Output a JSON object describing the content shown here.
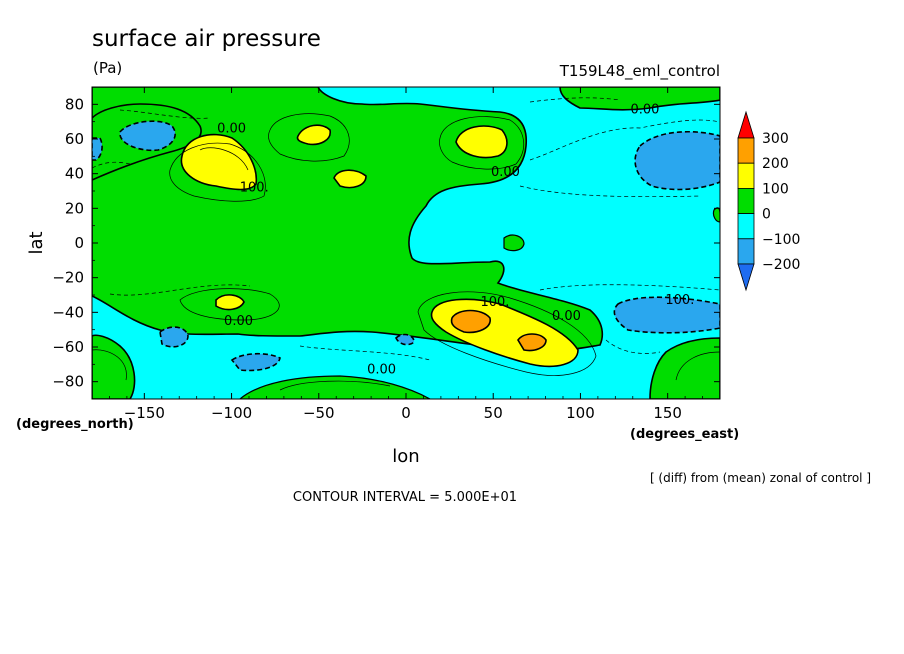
{
  "chart_data": {
    "type": "contour",
    "title": "surface air pressure",
    "units": "(Pa)",
    "run_label": "T159L48_eml_control",
    "xlabel": "lon",
    "ylabel": "lat",
    "x_units": "(degrees_east)",
    "y_units": "(degrees_north)",
    "xlim": [
      -180,
      180
    ],
    "ylim": [
      -90,
      90
    ],
    "x_ticks": [
      -150,
      -100,
      -50,
      0,
      50,
      100,
      150
    ],
    "y_ticks": [
      80,
      60,
      40,
      20,
      0,
      -20,
      -40,
      -60,
      -80
    ],
    "color_levels": [
      -200,
      -100,
      0,
      100,
      200,
      300
    ],
    "colorbar_labels": [
      "300",
      "200",
      "100",
      "0",
      "−100",
      "−200"
    ],
    "colors": {
      "below_-200": "#1e6cf0",
      "-200_to_-100": "#2aa7ee",
      "-100_to_0": "#00ffff",
      "0_to_100": "#00dd00",
      "100_to_200": "#ffff00",
      "200_to_300": "#ffa000",
      "above_300": "#ff0000"
    },
    "contour_labels": [
      {
        "text": "0.00",
        "lon": -100,
        "lat": 66
      },
      {
        "text": "0.00",
        "lon": 137,
        "lat": 77
      },
      {
        "text": "0.00",
        "lon": 57,
        "lat": 41
      },
      {
        "text": "100.",
        "lon": -87,
        "lat": 32
      },
      {
        "text": "100.",
        "lon": 51,
        "lat": -34
      },
      {
        "text": "100.",
        "lon": 157,
        "lat": -33
      },
      {
        "text": "0.00",
        "lon": 92,
        "lat": -42
      },
      {
        "text": "0.00",
        "lon": -96,
        "lat": -45
      },
      {
        "text": "0.00",
        "lon": -14,
        "lat": -73
      }
    ],
    "contour_interval": "CONTOUR INTERVAL = 5.000E+01",
    "note": "[ (diff) from (mean) zonal of control ]"
  }
}
